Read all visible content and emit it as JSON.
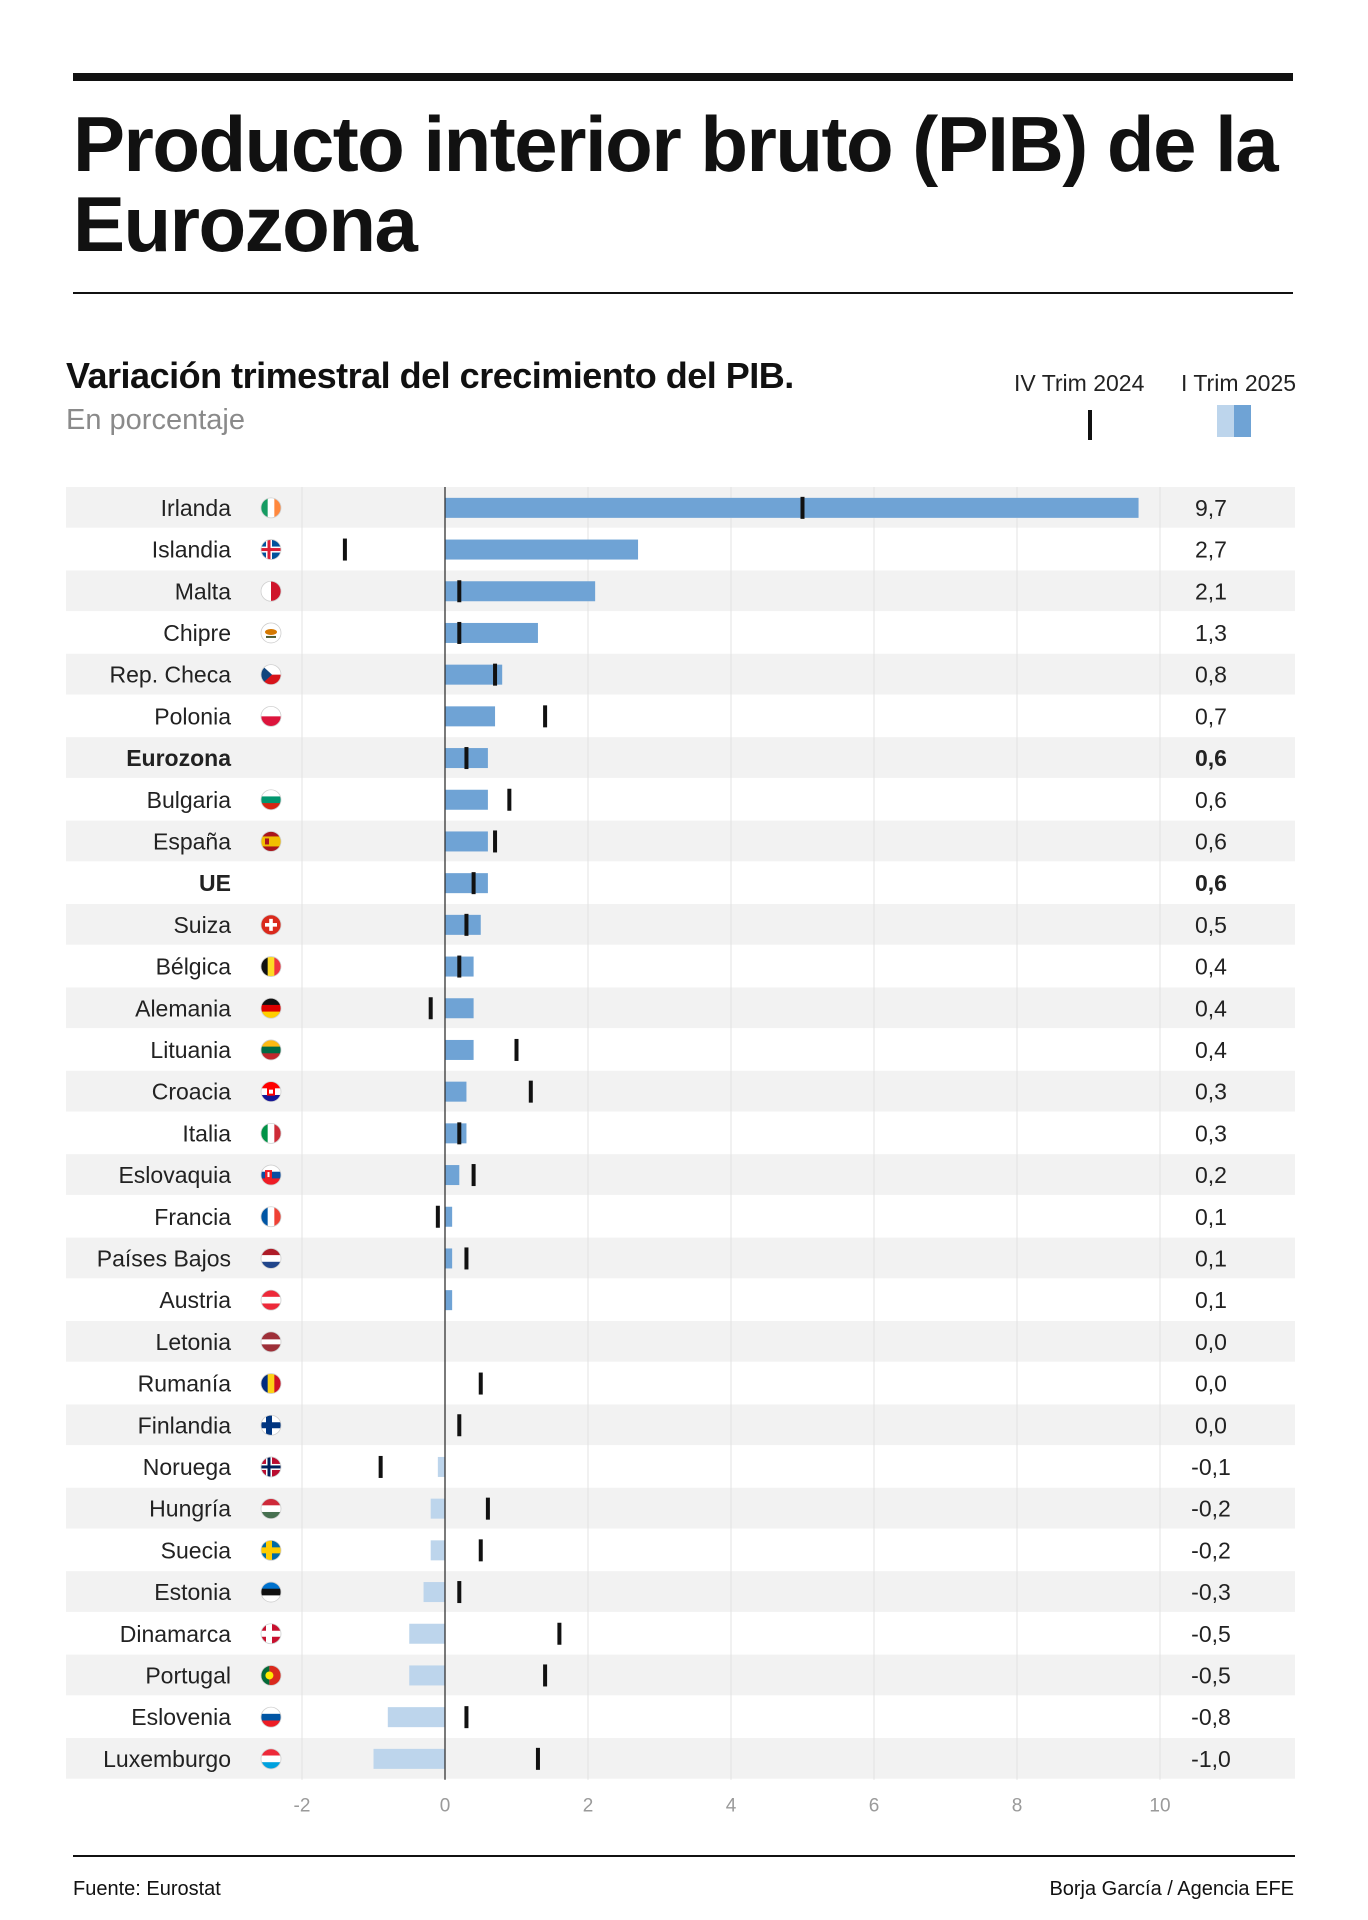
{
  "header": {
    "title": "Producto interior bruto (PIB) de la Eurozona"
  },
  "chart_data": {
    "type": "bar",
    "title": "Variación trimestral del crecimiento del PIB.",
    "subtitle": "En porcentaje",
    "xlim": [
      -2,
      10
    ],
    "x_ticks": [
      -2,
      0,
      2,
      4,
      6,
      8,
      10
    ],
    "x_tick_labels": [
      "-2",
      "0",
      "2",
      "4",
      "6",
      "8",
      "10"
    ],
    "grid": true,
    "legend_position": "top-right",
    "series": [
      {
        "name": "IV Trim 2024",
        "style": "tick"
      },
      {
        "name": "I Trim 2025",
        "style": "bar"
      }
    ],
    "colors": {
      "positive": "#6fa3d5",
      "negative": "#bdd5ec",
      "tick": "#111111",
      "stripe": "#f2f2f2"
    },
    "rows": [
      {
        "name": "Irlanda",
        "flag": "irlanda-flag-icon",
        "q1_2025": 9.7,
        "q4_2024": 5.0,
        "label": "9,7",
        "bold": false
      },
      {
        "name": "Islandia",
        "flag": "islandia-flag-icon",
        "q1_2025": 2.7,
        "q4_2024": -1.4,
        "label": "2,7",
        "bold": false
      },
      {
        "name": "Malta",
        "flag": "malta-flag-icon",
        "q1_2025": 2.1,
        "q4_2024": 0.2,
        "label": "2,1",
        "bold": false
      },
      {
        "name": "Chipre",
        "flag": "chipre-flag-icon",
        "q1_2025": 1.3,
        "q4_2024": 0.2,
        "label": "1,3",
        "bold": false
      },
      {
        "name": "Rep. Checa",
        "flag": "rep-checa-flag-icon",
        "q1_2025": 0.8,
        "q4_2024": 0.7,
        "label": "0,8",
        "bold": false
      },
      {
        "name": "Polonia",
        "flag": "polonia-flag-icon",
        "q1_2025": 0.7,
        "q4_2024": 1.4,
        "label": "0,7",
        "bold": false
      },
      {
        "name": "Eurozona",
        "flag": null,
        "q1_2025": 0.6,
        "q4_2024": 0.3,
        "label": "0,6",
        "bold": true
      },
      {
        "name": "Bulgaria",
        "flag": "bulgaria-flag-icon",
        "q1_2025": 0.6,
        "q4_2024": 0.9,
        "label": "0,6",
        "bold": false
      },
      {
        "name": "España",
        "flag": "espana-flag-icon",
        "q1_2025": 0.6,
        "q4_2024": 0.7,
        "label": "0,6",
        "bold": false
      },
      {
        "name": "UE",
        "flag": null,
        "q1_2025": 0.6,
        "q4_2024": 0.4,
        "label": "0,6",
        "bold": true
      },
      {
        "name": "Suiza",
        "flag": "suiza-flag-icon",
        "q1_2025": 0.5,
        "q4_2024": 0.3,
        "label": "0,5",
        "bold": false
      },
      {
        "name": "Bélgica",
        "flag": "belgica-flag-icon",
        "q1_2025": 0.4,
        "q4_2024": 0.2,
        "label": "0,4",
        "bold": false
      },
      {
        "name": "Alemania",
        "flag": "alemania-flag-icon",
        "q1_2025": 0.4,
        "q4_2024": -0.2,
        "label": "0,4",
        "bold": false
      },
      {
        "name": "Lituania",
        "flag": "lituania-flag-icon",
        "q1_2025": 0.4,
        "q4_2024": 1.0,
        "label": "0,4",
        "bold": false
      },
      {
        "name": "Croacia",
        "flag": "croacia-flag-icon",
        "q1_2025": 0.3,
        "q4_2024": 1.2,
        "label": "0,3",
        "bold": false
      },
      {
        "name": "Italia",
        "flag": "italia-flag-icon",
        "q1_2025": 0.3,
        "q4_2024": 0.2,
        "label": "0,3",
        "bold": false
      },
      {
        "name": "Eslovaquia",
        "flag": "eslovaquia-flag-icon",
        "q1_2025": 0.2,
        "q4_2024": 0.4,
        "label": "0,2",
        "bold": false
      },
      {
        "name": "Francia",
        "flag": "francia-flag-icon",
        "q1_2025": 0.1,
        "q4_2024": -0.1,
        "label": "0,1",
        "bold": false
      },
      {
        "name": "Países Bajos",
        "flag": "paises-bajos-flag-icon",
        "q1_2025": 0.1,
        "q4_2024": 0.3,
        "label": "0,1",
        "bold": false
      },
      {
        "name": "Austria",
        "flag": "austria-flag-icon",
        "q1_2025": 0.1,
        "q4_2024": null,
        "label": "0,1",
        "bold": false
      },
      {
        "name": "Letonia",
        "flag": "letonia-flag-icon",
        "q1_2025": 0.0,
        "q4_2024": null,
        "label": "0,0",
        "bold": false
      },
      {
        "name": "Rumanía",
        "flag": "rumania-flag-icon",
        "q1_2025": 0.0,
        "q4_2024": 0.5,
        "label": "0,0",
        "bold": false
      },
      {
        "name": "Finlandia",
        "flag": "finlandia-flag-icon",
        "q1_2025": 0.0,
        "q4_2024": 0.2,
        "label": "0,0",
        "bold": false
      },
      {
        "name": "Noruega",
        "flag": "noruega-flag-icon",
        "q1_2025": -0.1,
        "q4_2024": -0.9,
        "label": "-0,1",
        "bold": false
      },
      {
        "name": "Hungría",
        "flag": "hungria-flag-icon",
        "q1_2025": -0.2,
        "q4_2024": 0.6,
        "label": "-0,2",
        "bold": false
      },
      {
        "name": "Suecia",
        "flag": "suecia-flag-icon",
        "q1_2025": -0.2,
        "q4_2024": 0.5,
        "label": "-0,2",
        "bold": false
      },
      {
        "name": "Estonia",
        "flag": "estonia-flag-icon",
        "q1_2025": -0.3,
        "q4_2024": 0.2,
        "label": "-0,3",
        "bold": false
      },
      {
        "name": "Dinamarca",
        "flag": "dinamarca-flag-icon",
        "q1_2025": -0.5,
        "q4_2024": 1.6,
        "label": "-0,5",
        "bold": false
      },
      {
        "name": "Portugal",
        "flag": "portugal-flag-icon",
        "q1_2025": -0.5,
        "q4_2024": 1.4,
        "label": "-0,5",
        "bold": false
      },
      {
        "name": "Eslovenia",
        "flag": "eslovenia-flag-icon",
        "q1_2025": -0.8,
        "q4_2024": 0.3,
        "label": "-0,8",
        "bold": false
      },
      {
        "name": "Luxemburgo",
        "flag": "luxemburgo-flag-icon",
        "q1_2025": -1.0,
        "q4_2024": 1.3,
        "label": "-1,0",
        "bold": false
      }
    ]
  },
  "footer": {
    "source": "Fuente: Eurostat",
    "credit": "Borja García / Agencia EFE"
  }
}
